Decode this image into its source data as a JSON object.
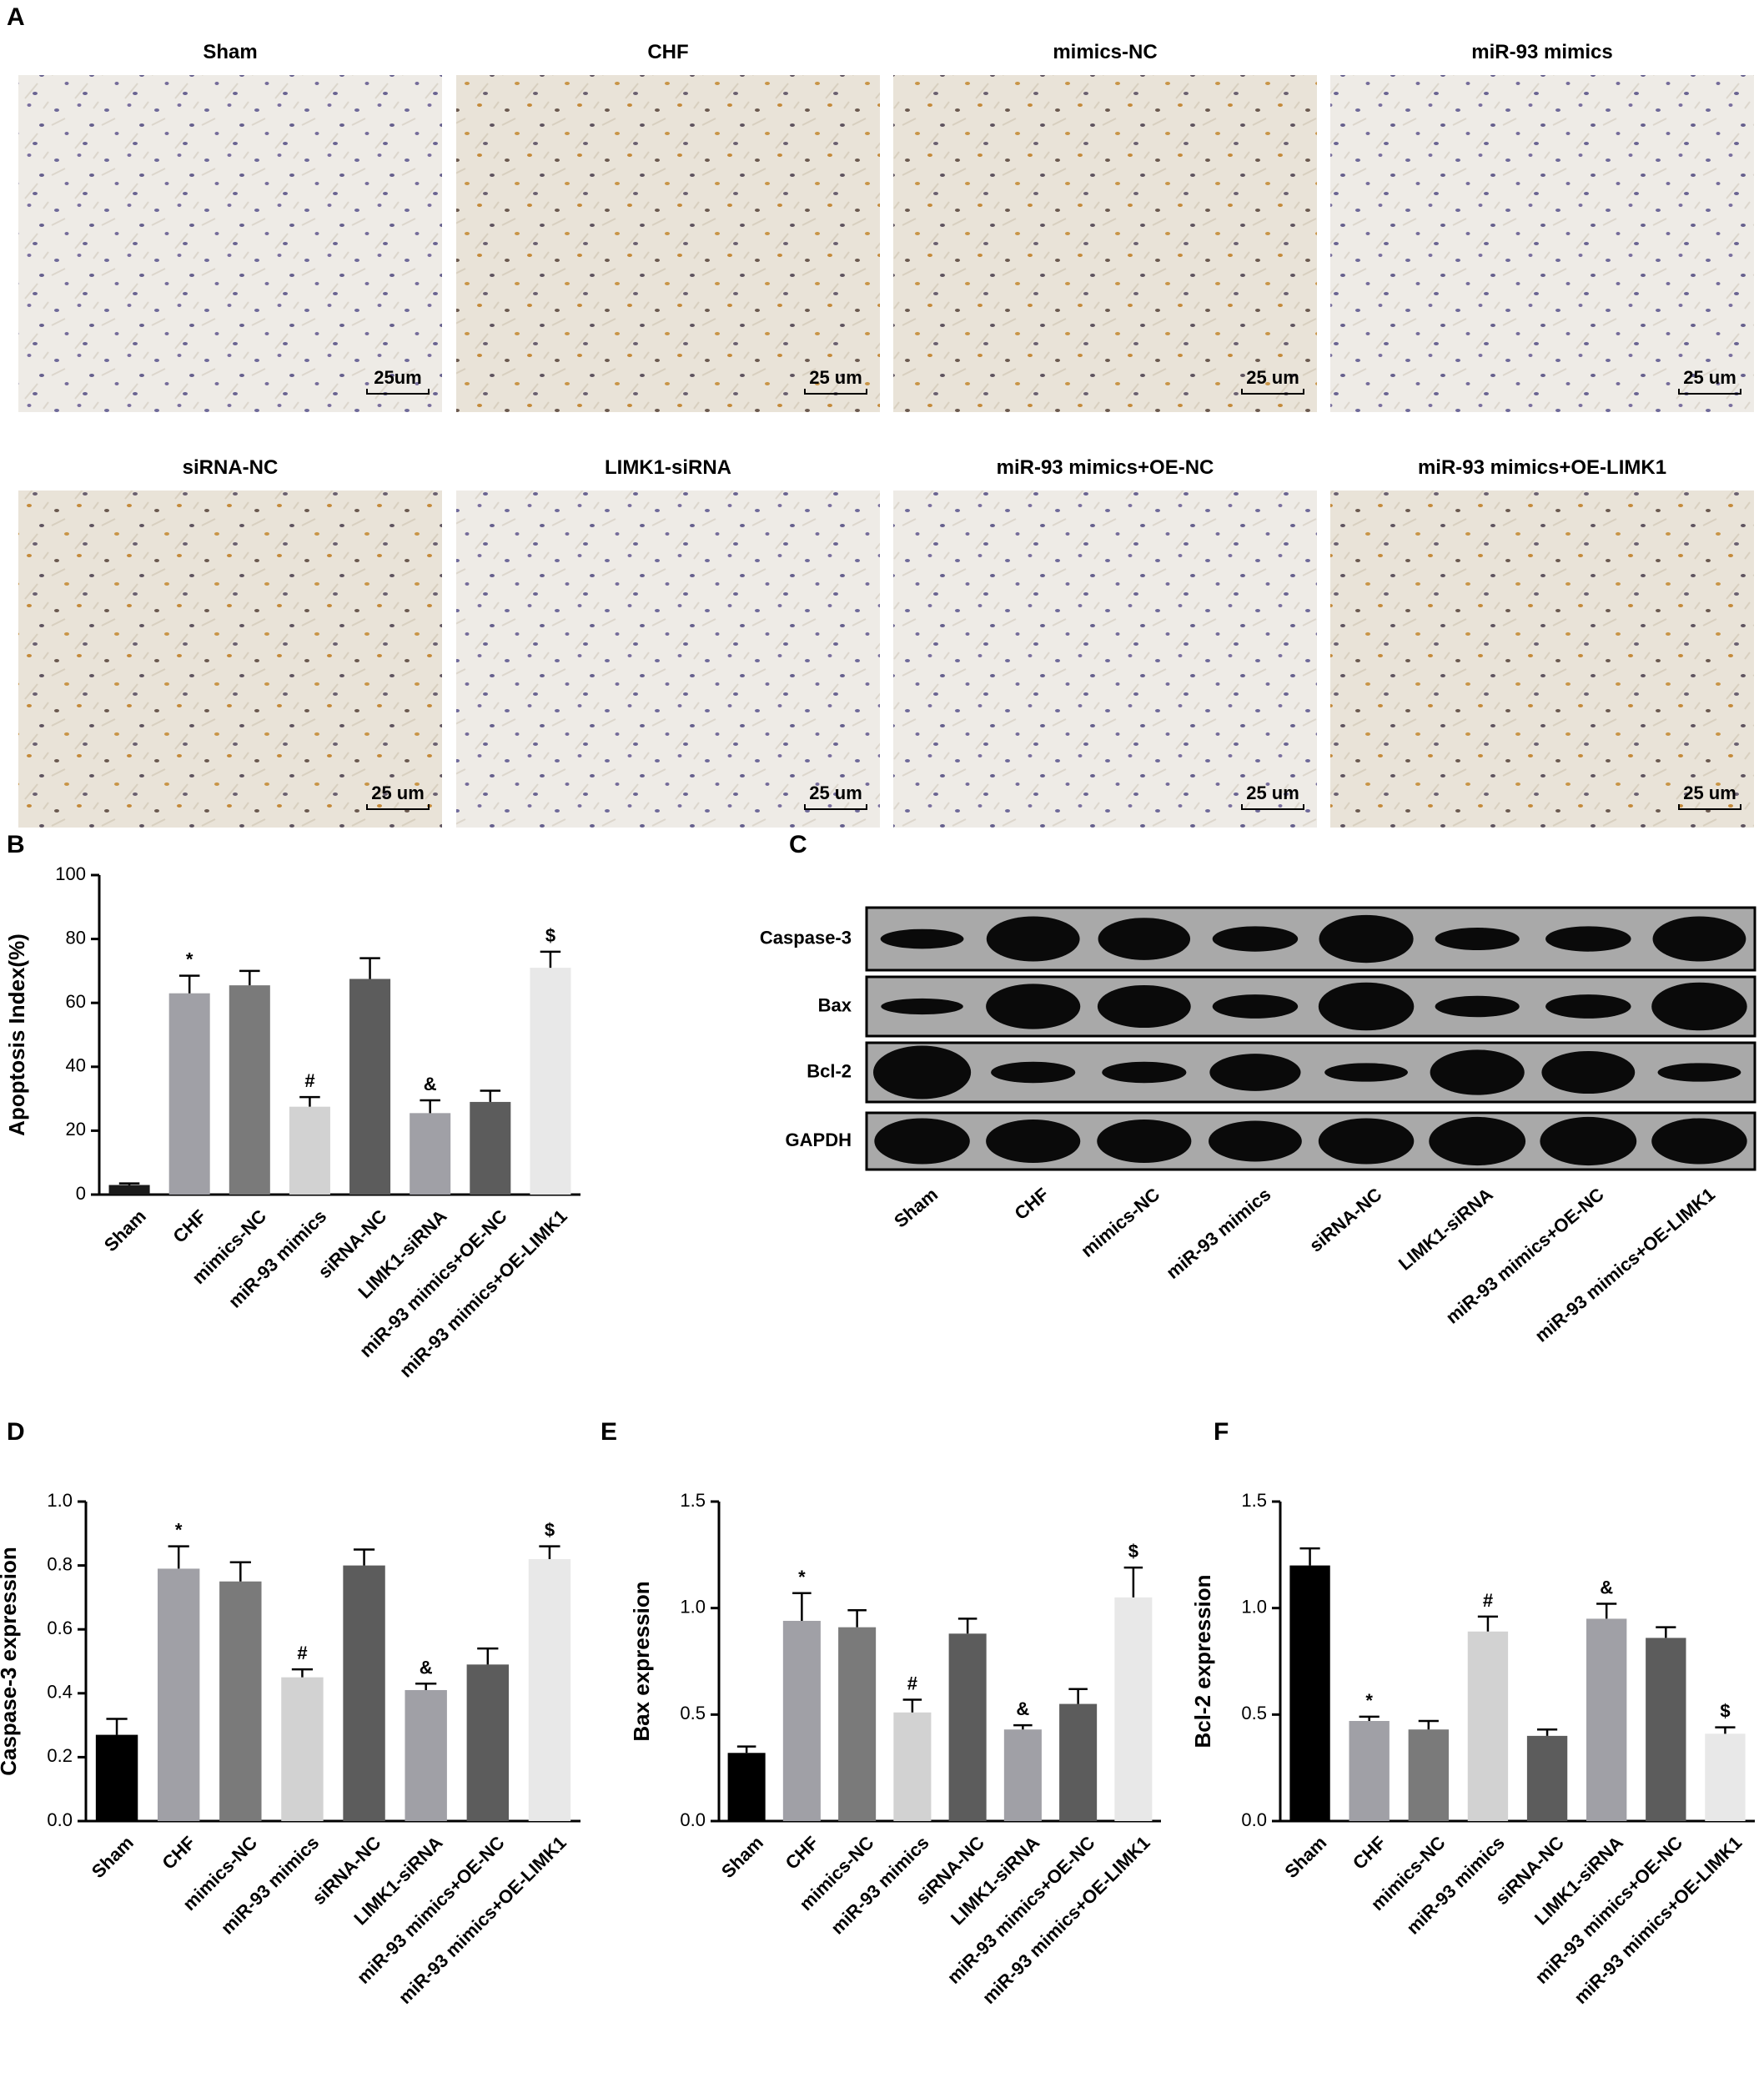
{
  "panel_labels": [
    "A",
    "B",
    "C",
    "D",
    "E",
    "F"
  ],
  "micrographs": [
    {
      "title": "Sham",
      "scale": "25um"
    },
    {
      "title": "CHF",
      "scale": "25 um"
    },
    {
      "title": "mimics-NC",
      "scale": "25 um"
    },
    {
      "title": "miR-93 mimics",
      "scale": "25 um"
    },
    {
      "title": "siRNA-NC",
      "scale": "25 um"
    },
    {
      "title": "LIMK1-siRNA",
      "scale": "25 um"
    },
    {
      "title": "miR-93 mimics+OE-NC",
      "scale": "25 um"
    },
    {
      "title": "miR-93 mimics+OE-LIMK1",
      "scale": "25 um"
    }
  ],
  "blot": {
    "rows": [
      "Caspase-3",
      "Bax",
      "Bcl-2",
      "GAPDH"
    ],
    "lanes": [
      "Sham",
      "CHF",
      "mimics-NC",
      "miR-93 mimics",
      "siRNA-NC",
      "LIMK1-siRNA",
      "miR-93 mimics+OE-NC",
      "miR-93 mimics+OE-LIMK1"
    ]
  },
  "chart_data": [
    {
      "type": "bar",
      "y_label": "Apoptosis Index(%)",
      "categories": [
        "Sham",
        "CHF",
        "mimics-NC",
        "miR-93 mimics",
        "siRNA-NC",
        "LIMK1-siRNA",
        "miR-93 mimics+OE-NC",
        "miR-93 mimics+OE-LIMK1"
      ],
      "values": [
        3,
        63,
        65.5,
        27.5,
        67.5,
        25.5,
        29,
        71
      ],
      "errors": [
        0.5,
        5.5,
        4.5,
        3,
        6.5,
        4,
        3.5,
        5
      ],
      "markers": [
        null,
        "*",
        null,
        "#",
        null,
        "&",
        null,
        "$"
      ],
      "colors": [
        "#1a1a1a",
        "#a0a0a6",
        "#7a7a7a",
        "#d2d2d2",
        "#5c5c5c",
        "#a0a0a6",
        "#5c5c5c",
        "#e8e8e8"
      ],
      "ylim": [
        0,
        100
      ],
      "yticks": [
        0,
        20,
        40,
        60,
        80,
        100
      ]
    },
    {
      "type": "bar",
      "y_label": "Caspase-3 expression",
      "categories": [
        "Sham",
        "CHF",
        "mimics-NC",
        "miR-93 mimics",
        "siRNA-NC",
        "LIMK1-siRNA",
        "miR-93 mimics+OE-NC",
        "miR-93 mimics+OE-LIMK1"
      ],
      "values": [
        0.27,
        0.79,
        0.75,
        0.45,
        0.8,
        0.41,
        0.49,
        0.82
      ],
      "errors": [
        0.05,
        0.07,
        0.06,
        0.025,
        0.05,
        0.02,
        0.05,
        0.04
      ],
      "markers": [
        null,
        "*",
        null,
        "#",
        null,
        "&",
        null,
        "$"
      ],
      "colors": [
        "#000000",
        "#a0a0a6",
        "#7a7a7a",
        "#d2d2d2",
        "#5c5c5c",
        "#a0a0a6",
        "#5c5c5c",
        "#e8e8e8"
      ],
      "ylim": [
        0,
        1
      ],
      "yticks": [
        {
          "value": 0,
          "label": "0.0"
        },
        0.2,
        0.4,
        0.6,
        0.8,
        {
          "value": 1,
          "label": "1.0"
        }
      ]
    },
    {
      "type": "bar",
      "y_label": "Bax expression",
      "categories": [
        "Sham",
        "CHF",
        "mimics-NC",
        "miR-93 mimics",
        "siRNA-NC",
        "LIMK1-siRNA",
        "miR-93 mimics+OE-NC",
        "miR-93 mimics+OE-LIMK1"
      ],
      "values": [
        0.32,
        0.94,
        0.91,
        0.51,
        0.88,
        0.43,
        0.55,
        1.05
      ],
      "errors": [
        0.03,
        0.13,
        0.08,
        0.06,
        0.07,
        0.02,
        0.07,
        0.14
      ],
      "markers": [
        null,
        "*",
        null,
        "#",
        null,
        "&",
        null,
        "$"
      ],
      "colors": [
        "#000000",
        "#a0a0a6",
        "#7a7a7a",
        "#d2d2d2",
        "#5c5c5c",
        "#a0a0a6",
        "#5c5c5c",
        "#e8e8e8"
      ],
      "ylim": [
        0,
        1.5
      ],
      "yticks": [
        {
          "value": 0,
          "label": "0.0"
        },
        0.5,
        {
          "value": 1,
          "label": "1.0"
        },
        1.5
      ]
    },
    {
      "type": "bar",
      "y_label": "Bcl-2 expression",
      "categories": [
        "Sham",
        "CHF",
        "mimics-NC",
        "miR-93 mimics",
        "siRNA-NC",
        "LIMK1-siRNA",
        "miR-93 mimics+OE-NC",
        "miR-93 mimics+OE-LIMK1"
      ],
      "values": [
        1.2,
        0.47,
        0.43,
        0.89,
        0.4,
        0.95,
        0.86,
        0.41
      ],
      "errors": [
        0.08,
        0.02,
        0.04,
        0.07,
        0.03,
        0.07,
        0.05,
        0.03
      ],
      "markers": [
        null,
        "*",
        null,
        "#",
        null,
        "&",
        null,
        "$"
      ],
      "colors": [
        "#000000",
        "#a0a0a6",
        "#7a7a7a",
        "#d2d2d2",
        "#5c5c5c",
        "#a0a0a6",
        "#5c5c5c",
        "#e8e8e8"
      ],
      "ylim": [
        0,
        1.5
      ],
      "yticks": [
        {
          "value": 0,
          "label": "0.0"
        },
        0.5,
        {
          "value": 1,
          "label": "1.0"
        },
        1.5
      ]
    }
  ]
}
